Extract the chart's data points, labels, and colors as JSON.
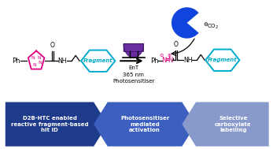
{
  "arrow_labels": [
    "D2B-HTC enabled\nreactive fragment-based\nhit ID",
    "Photosensitiser\nmediated\nactivation",
    "Selective\ncarboxylate\nlabelling"
  ],
  "arrow_colors": [
    "#1e3a8a",
    "#3d5fc0",
    "#8899cc"
  ],
  "arrow_text_color": "#ffffff",
  "background_color": "#ffffff",
  "ent_text": "EnT\n365 nm\nPhotosensitiser",
  "pink_color": "#e0007f",
  "cyan_color": "#00aacc",
  "blue_color": "#1133cc",
  "purple_bulb": "#6a2d9f",
  "notch": 0.04
}
